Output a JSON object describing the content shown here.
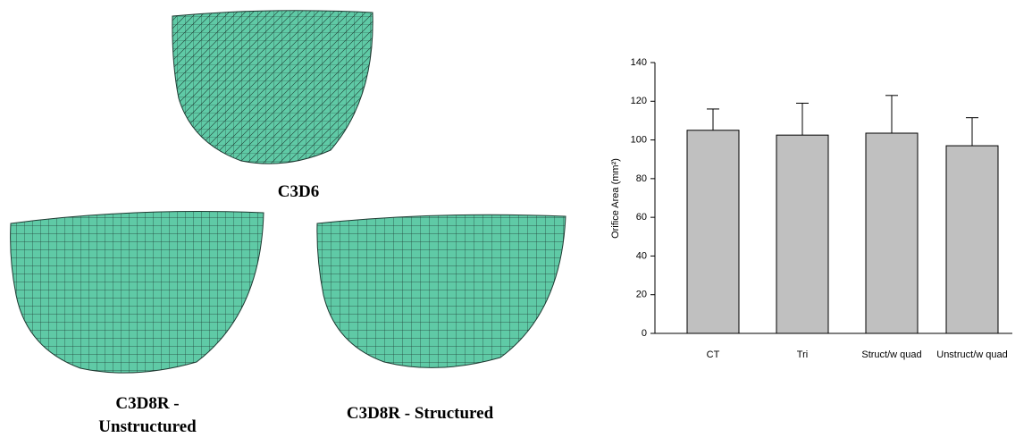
{
  "figures": [
    {
      "label": "C3D6"
    },
    {
      "label": "C3D8R - Unstructured"
    },
    {
      "label": "C3D8R - Structured"
    }
  ],
  "chart_data": {
    "type": "bar",
    "ylabel": "Orifice Area (mm²)",
    "categories": [
      "CT",
      "Tri",
      "Struct/w quad",
      "Unstruct/w quad"
    ],
    "values": [
      105,
      102.5,
      103.5,
      97
    ],
    "errors": [
      11,
      16.5,
      19.5,
      14.5
    ],
    "color": "#c0c0c0",
    "ylim": [
      0,
      140
    ],
    "yticks": [
      0,
      20,
      40,
      60,
      80,
      100,
      120,
      140
    ],
    "grid": false
  }
}
